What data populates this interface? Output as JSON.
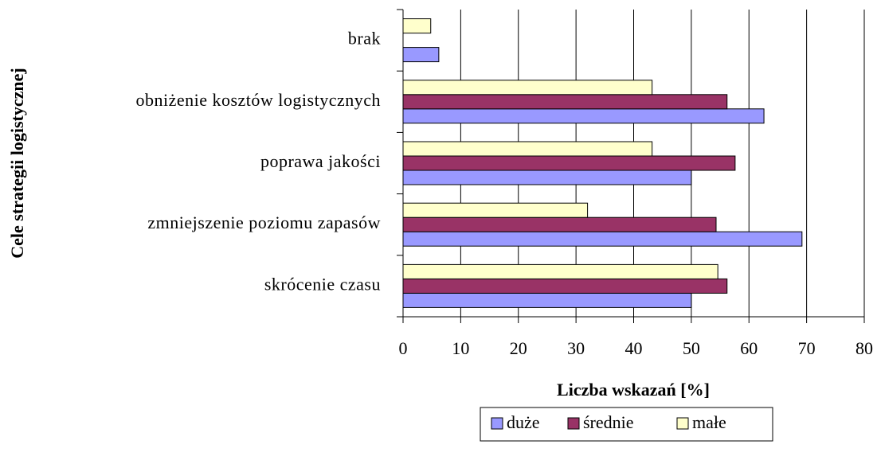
{
  "chart_data": {
    "type": "bar",
    "orientation": "horizontal",
    "categories": [
      "brak",
      "obniżenie kosztów logistycznych",
      "poprawa jakości",
      "zmniejszenie poziomu zapasów",
      "skrócenie czasu"
    ],
    "series": [
      {
        "name": "duże",
        "color": "#9999ff",
        "values": [
          6.2,
          62.6,
          50,
          69.2,
          50
        ]
      },
      {
        "name": "średnie",
        "color": "#993366",
        "values": [
          null,
          56.2,
          57.6,
          54.3,
          56.2
        ]
      },
      {
        "name": "małe",
        "color": "#ffffcc",
        "values": [
          4.8,
          43.2,
          43.2,
          32,
          54.6
        ]
      }
    ],
    "xlabel": "Liczba wskazań [%]",
    "ylabel": "Cele strategii logistycznej",
    "xlim": [
      0,
      80
    ],
    "xticks": [
      0,
      10,
      20,
      30,
      40,
      50,
      60,
      70,
      80
    ],
    "grid": true,
    "legend": "bottom"
  }
}
